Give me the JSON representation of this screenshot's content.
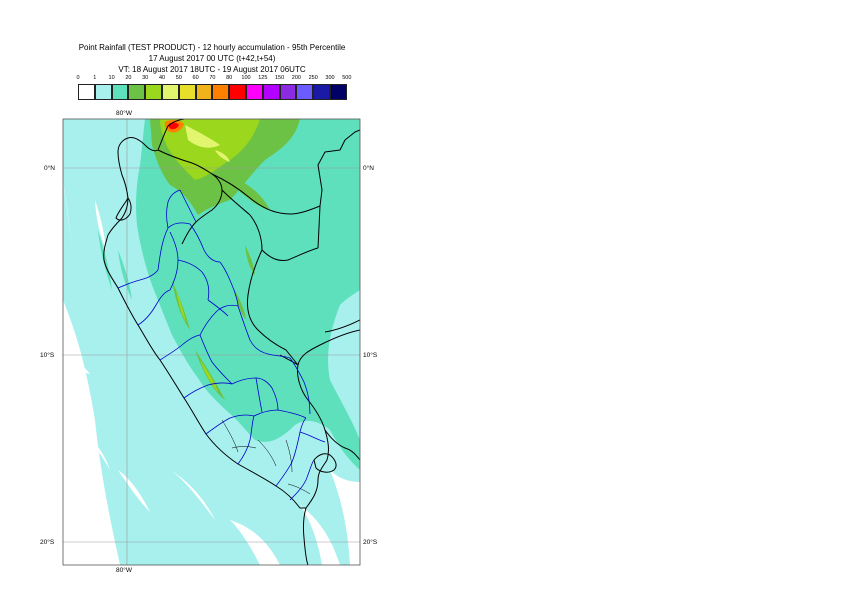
{
  "title": {
    "line1": "Point Rainfall (TEST PRODUCT) - 12 hourly accumulation - 95th Percentile",
    "line2": "17 August 2017 00 UTC (t+42,t+54)",
    "line3": "VT: 18 August 2017 18UTC - 19 August 2017 06UTC"
  },
  "legend": {
    "bins": [
      {
        "label": "0",
        "color": "#ffffff"
      },
      {
        "label": "1",
        "color": "#a8f0ee"
      },
      {
        "label": "10",
        "color": "#5fe0bd"
      },
      {
        "label": "20",
        "color": "#6cc244"
      },
      {
        "label": "30",
        "color": "#9bd71d"
      },
      {
        "label": "40",
        "color": "#e1f56e"
      },
      {
        "label": "50",
        "color": "#e6e02a"
      },
      {
        "label": "60",
        "color": "#f0b31a"
      },
      {
        "label": "70",
        "color": "#ff7f00"
      },
      {
        "label": "80",
        "color": "#ff0000"
      },
      {
        "label": "100",
        "color": "#ff00ff"
      },
      {
        "label": "125",
        "color": "#b300ff"
      },
      {
        "label": "150",
        "color": "#8a2be2"
      },
      {
        "label": "200",
        "color": "#6a5cff"
      },
      {
        "label": "250",
        "color": "#1a1aa6"
      },
      {
        "label": "300",
        "color": "#000066"
      }
    ],
    "last_label": "500"
  },
  "map": {
    "lon_top": "80°W",
    "lon_bottom": "80°W",
    "lat_labels": [
      "0°N",
      "10°S",
      "20°S"
    ]
  },
  "colors": {
    "sea": "#a8f0ee",
    "ten": "#5fe0bd",
    "twenty": "#6cc244",
    "thirty": "#9bd71d",
    "forty": "#e1f56e",
    "eighty": "#ff0000",
    "boundary": "#0000cc",
    "coast": "#000000"
  }
}
